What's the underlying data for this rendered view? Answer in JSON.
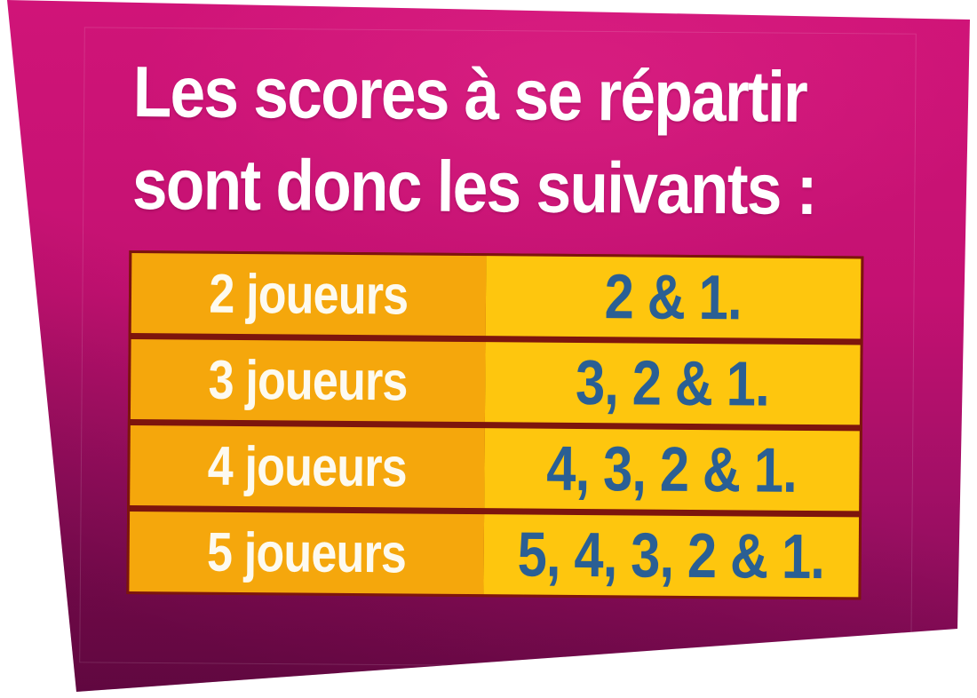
{
  "card": {
    "title": {
      "line1": "Les scores à se répartir",
      "line2": "sont donc les suivants :"
    },
    "table": {
      "rows": [
        {
          "players": "2 joueurs",
          "scores": "2 & 1."
        },
        {
          "players": "3 joueurs",
          "scores": "3, 2 & 1."
        },
        {
          "players": "4 joueurs",
          "scores": "4, 3, 2 & 1."
        },
        {
          "players": "5 joueurs",
          "scores": "5, 4, 3, 2 & 1."
        }
      ]
    },
    "colors": {
      "card_magenta_top": "#d01478",
      "card_magenta_bottom": "#7c0a52",
      "players_column_orange": "#f5a70c",
      "scores_column_yellow": "#fec60e",
      "separator_dark_red": "#7d150d",
      "scores_text_blue": "#2a5f94",
      "title_text": "#ffffff"
    }
  }
}
